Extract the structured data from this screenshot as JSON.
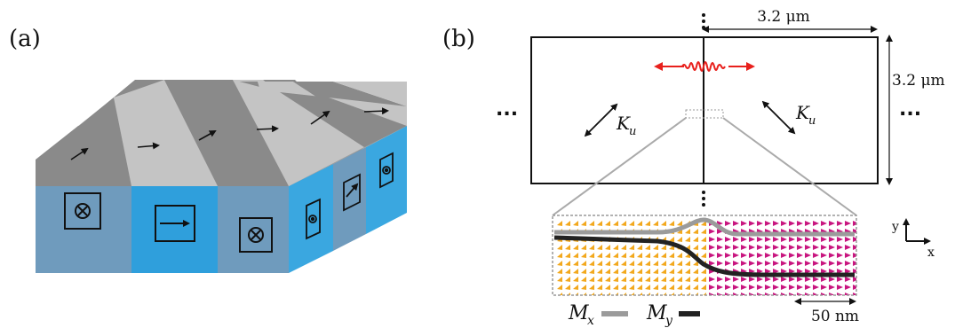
{
  "panel_a": {
    "label": "(a)",
    "colors": {
      "top_dark": "#8a8a8a",
      "top_light": "#c4c4c4",
      "side_blue": "#2f9fdc",
      "side_gray": "#6f9bbd"
    },
    "front_symbols": [
      "circle-cross-icon",
      "arrow-right-box-icon",
      "circle-cross-icon"
    ],
    "right_symbols": [
      "circle-dot-icon",
      "arrow-right-box-icon",
      "circle-dot-icon"
    ]
  },
  "panel_b": {
    "label": "(b)",
    "width_label": "3.2 μm",
    "height_label": "3.2 μm",
    "ku_main": "K",
    "ku_sub": "u",
    "ellipsis": "...",
    "vertical_ellipsis": "⋮",
    "wave_color": "#e8201c",
    "inset": {
      "left_color": "#f2a81d",
      "right_color": "#c8157f",
      "mx_color": "#9b9b9b",
      "my_color": "#222222",
      "scale_label": "50 nm"
    },
    "legend": {
      "mx_main": "M",
      "mx_sub": "x",
      "my_main": "M",
      "my_sub": "y"
    },
    "axes": {
      "y": "y",
      "x": "x"
    }
  }
}
